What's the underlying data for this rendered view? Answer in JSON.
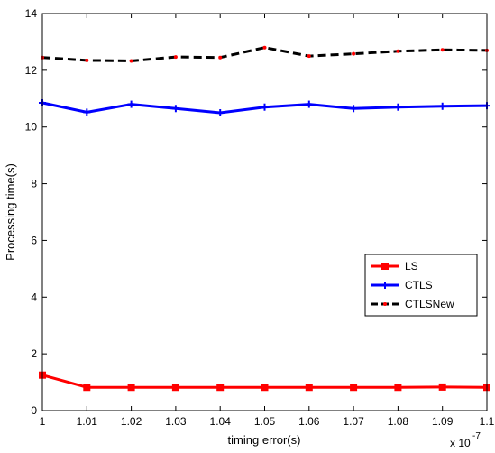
{
  "chart_data": {
    "type": "line",
    "x": [
      1,
      1.01,
      1.02,
      1.03,
      1.04,
      1.05,
      1.06,
      1.07,
      1.08,
      1.09,
      1.1
    ],
    "x_tick_labels": [
      "1",
      "1.01",
      "1.02",
      "1.03",
      "1.04",
      "1.05",
      "1.06",
      "1.07",
      "1.08",
      "1.09",
      "1.1"
    ],
    "x_multiplier_label": "x 10",
    "x_multiplier_exponent": "-7",
    "y_ticks": [
      0,
      2,
      4,
      6,
      8,
      10,
      12,
      14
    ],
    "xlabel": "timing error(s)",
    "ylabel": "Processing time(s)",
    "xlim": [
      1,
      1.1
    ],
    "ylim": [
      0,
      14
    ],
    "grid": false,
    "legend_position": "right",
    "series": [
      {
        "name": "LS",
        "color": "#ff0000",
        "marker": "square",
        "dash": "solid",
        "values": [
          1.25,
          0.82,
          0.82,
          0.82,
          0.82,
          0.82,
          0.82,
          0.82,
          0.82,
          0.83,
          0.82
        ]
      },
      {
        "name": "CTLS",
        "color": "#0000ff",
        "marker": "plus",
        "dash": "solid",
        "values": [
          10.85,
          10.52,
          10.8,
          10.65,
          10.5,
          10.7,
          10.8,
          10.65,
          10.7,
          10.73,
          10.75
        ]
      },
      {
        "name": "CTLSNew",
        "color": "#000000",
        "marker_color": "#ff0000",
        "marker": "dot",
        "dash": "dashed",
        "values": [
          12.45,
          12.35,
          12.33,
          12.47,
          12.45,
          12.8,
          12.5,
          12.58,
          12.67,
          12.72,
          12.7
        ]
      }
    ]
  }
}
